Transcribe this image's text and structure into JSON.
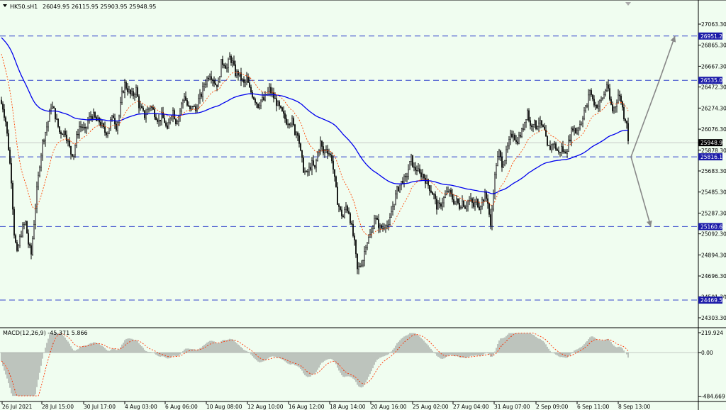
{
  "chart_data": {
    "type": "candlestick",
    "symbol_header": "HK50.sH1",
    "ohlc_header": "26049.95 26115.95 25903.95 25948.95",
    "current_price": 25948.95,
    "price_axis": {
      "range": [
        24200,
        27200
      ],
      "ticks": [
        "27063.30",
        "26865.30",
        "26667.30",
        "26472.30",
        "26274.30",
        "26076.30",
        "25878.30",
        "25683.30",
        "25485.30",
        "25287.30",
        "25092.30",
        "24894.30",
        "24696.30",
        "24501.30",
        "24303.30"
      ],
      "tick_values": [
        27063.3,
        26865.3,
        26667.3,
        26472.3,
        26274.3,
        26076.3,
        25878.3,
        25683.3,
        25485.3,
        25287.3,
        25092.3,
        24894.3,
        24696.3,
        24501.3,
        24303.3
      ]
    },
    "levels": [
      {
        "value": 26951.26,
        "label": "26951.26"
      },
      {
        "value": 26535.0,
        "label": "26535.00"
      },
      {
        "value": 25816.19,
        "label": "25816.19"
      },
      {
        "value": 25160.63,
        "label": "25160.63"
      },
      {
        "value": 24469.58,
        "label": "24469.58"
      }
    ],
    "time_axis": {
      "labels": [
        "26 Jul 2021",
        "28 Jul 15:00",
        "30 Jul 17:00",
        "4 Aug 03:00",
        "6 Aug 06:00",
        "10 Aug 08:00",
        "12 Aug 10:00",
        "16 Aug 12:00",
        "18 Aug 14:00",
        "20 Aug 16:00",
        "25 Aug 02:00",
        "27 Aug 04:00",
        "31 Aug 07:00",
        "2 Sep 09:00",
        "6 Sep 11:00",
        "8 Sep 13:00"
      ]
    },
    "price_path": [
      [
        0,
        26350
      ],
      [
        4,
        26280
      ],
      [
        8,
        26150
      ],
      [
        12,
        25900
      ],
      [
        16,
        25600
      ],
      [
        20,
        25100
      ],
      [
        24,
        24900
      ],
      [
        28,
        25050
      ],
      [
        32,
        25150
      ],
      [
        36,
        25200
      ],
      [
        40,
        25000
      ],
      [
        44,
        24900
      ],
      [
        48,
        25200
      ],
      [
        52,
        25500
      ],
      [
        56,
        25750
      ],
      [
        60,
        25950
      ],
      [
        64,
        26050
      ],
      [
        68,
        26150
      ],
      [
        72,
        26300
      ],
      [
        76,
        26250
      ],
      [
        80,
        26150
      ],
      [
        84,
        26050
      ],
      [
        88,
        26050
      ],
      [
        92,
        26050
      ],
      [
        96,
        25950
      ],
      [
        100,
        25850
      ],
      [
        104,
        25850
      ],
      [
        108,
        26000
      ],
      [
        112,
        26100
      ],
      [
        116,
        26100
      ],
      [
        120,
        26050
      ],
      [
        124,
        26150
      ],
      [
        128,
        26200
      ],
      [
        132,
        26200
      ],
      [
        136,
        26150
      ],
      [
        140,
        26150
      ],
      [
        144,
        26100
      ],
      [
        148,
        26050
      ],
      [
        152,
        26050
      ],
      [
        156,
        26150
      ],
      [
        160,
        26200
      ],
      [
        164,
        26100
      ],
      [
        168,
        26200
      ],
      [
        172,
        26400
      ],
      [
        176,
        26500
      ],
      [
        180,
        26450
      ],
      [
        184,
        26400
      ],
      [
        188,
        26400
      ],
      [
        192,
        26450
      ],
      [
        196,
        26300
      ],
      [
        200,
        26250
      ],
      [
        204,
        26200
      ],
      [
        208,
        26250
      ],
      [
        212,
        26300
      ],
      [
        216,
        26250
      ],
      [
        220,
        26200
      ],
      [
        224,
        26150
      ],
      [
        228,
        26200
      ],
      [
        232,
        26150
      ],
      [
        236,
        26050
      ],
      [
        240,
        26200
      ],
      [
        244,
        26250
      ],
      [
        248,
        26150
      ],
      [
        252,
        26200
      ],
      [
        256,
        26300
      ],
      [
        260,
        26400
      ],
      [
        264,
        26300
      ],
      [
        268,
        26250
      ],
      [
        272,
        26300
      ],
      [
        276,
        26250
      ],
      [
        280,
        26350
      ],
      [
        284,
        26400
      ],
      [
        288,
        26500
      ],
      [
        292,
        26550
      ],
      [
        296,
        26600
      ],
      [
        300,
        26550
      ],
      [
        304,
        26500
      ],
      [
        308,
        26500
      ],
      [
        312,
        26700
      ],
      [
        316,
        26700
      ],
      [
        320,
        26650
      ],
      [
        324,
        26750
      ],
      [
        328,
        26700
      ],
      [
        332,
        26600
      ],
      [
        336,
        26600
      ],
      [
        340,
        26550
      ],
      [
        344,
        26500
      ],
      [
        348,
        26550
      ],
      [
        352,
        26450
      ],
      [
        356,
        26400
      ],
      [
        360,
        26350
      ],
      [
        364,
        26300
      ],
      [
        368,
        26350
      ],
      [
        372,
        26350
      ],
      [
        376,
        26400
      ],
      [
        380,
        26450
      ],
      [
        384,
        26400
      ],
      [
        388,
        26350
      ],
      [
        392,
        26300
      ],
      [
        396,
        26250
      ],
      [
        400,
        26200
      ],
      [
        404,
        26150
      ],
      [
        408,
        26150
      ],
      [
        412,
        26150
      ],
      [
        416,
        26050
      ],
      [
        420,
        26050
      ],
      [
        424,
        25850
      ],
      [
        428,
        25700
      ],
      [
        432,
        25650
      ],
      [
        436,
        25700
      ],
      [
        440,
        25750
      ],
      [
        444,
        25700
      ],
      [
        448,
        25850
      ],
      [
        452,
        25950
      ],
      [
        456,
        25850
      ],
      [
        460,
        25900
      ],
      [
        464,
        25850
      ],
      [
        468,
        25800
      ],
      [
        472,
        25600
      ],
      [
        476,
        25400
      ],
      [
        480,
        25300
      ],
      [
        484,
        25250
      ],
      [
        488,
        25350
      ],
      [
        492,
        25300
      ],
      [
        496,
        25150
      ],
      [
        500,
        25000
      ],
      [
        504,
        24750
      ],
      [
        508,
        24800
      ],
      [
        512,
        24850
      ],
      [
        516,
        25000
      ],
      [
        520,
        25050
      ],
      [
        524,
        25100
      ],
      [
        528,
        25250
      ],
      [
        532,
        25200
      ],
      [
        536,
        25150
      ],
      [
        540,
        25150
      ],
      [
        544,
        25200
      ],
      [
        548,
        25150
      ],
      [
        552,
        25300
      ],
      [
        556,
        25400
      ],
      [
        560,
        25500
      ],
      [
        564,
        25550
      ],
      [
        568,
        25600
      ],
      [
        572,
        25600
      ],
      [
        576,
        25700
      ],
      [
        580,
        25800
      ],
      [
        584,
        25700
      ],
      [
        588,
        25700
      ],
      [
        592,
        25650
      ],
      [
        596,
        25650
      ],
      [
        600,
        25600
      ],
      [
        604,
        25550
      ],
      [
        608,
        25500
      ],
      [
        612,
        25450
      ],
      [
        616,
        25350
      ],
      [
        620,
        25350
      ],
      [
        624,
        25400
      ],
      [
        628,
        25450
      ],
      [
        632,
        25500
      ],
      [
        636,
        25450
      ],
      [
        640,
        25400
      ],
      [
        644,
        25400
      ],
      [
        648,
        25350
      ],
      [
        652,
        25400
      ],
      [
        656,
        25350
      ],
      [
        660,
        25400
      ],
      [
        664,
        25400
      ],
      [
        668,
        25350
      ],
      [
        672,
        25400
      ],
      [
        676,
        25350
      ],
      [
        680,
        25400
      ],
      [
        684,
        25450
      ],
      [
        688,
        25400
      ],
      [
        692,
        25150
      ],
      [
        696,
        25500
      ],
      [
        700,
        25750
      ],
      [
        704,
        25850
      ],
      [
        708,
        25750
      ],
      [
        712,
        25800
      ],
      [
        716,
        25900
      ],
      [
        720,
        26000
      ],
      [
        724,
        26050
      ],
      [
        728,
        25950
      ],
      [
        732,
        26000
      ],
      [
        736,
        26050
      ],
      [
        740,
        26150
      ],
      [
        744,
        26250
      ],
      [
        748,
        26100
      ],
      [
        752,
        26150
      ],
      [
        756,
        26100
      ],
      [
        760,
        26150
      ],
      [
        764,
        26100
      ],
      [
        768,
        26050
      ],
      [
        772,
        25900
      ],
      [
        776,
        25900
      ],
      [
        780,
        25950
      ],
      [
        784,
        25900
      ],
      [
        788,
        25850
      ],
      [
        792,
        25900
      ],
      [
        796,
        25850
      ],
      [
        800,
        25900
      ],
      [
        804,
        26000
      ],
      [
        808,
        26100
      ],
      [
        812,
        26050
      ],
      [
        816,
        26100
      ],
      [
        820,
        26150
      ],
      [
        824,
        26250
      ],
      [
        828,
        26300
      ],
      [
        832,
        26450
      ],
      [
        836,
        26350
      ],
      [
        840,
        26300
      ],
      [
        844,
        26300
      ],
      [
        848,
        26350
      ],
      [
        852,
        26400
      ],
      [
        856,
        26500
      ],
      [
        860,
        26350
      ],
      [
        864,
        26250
      ],
      [
        868,
        26300
      ],
      [
        872,
        26400
      ],
      [
        876,
        26350
      ],
      [
        880,
        26200
      ],
      [
        884,
        26150
      ],
      [
        886,
        25949
      ]
    ],
    "projections": [
      {
        "from": [
          890,
          25816
        ],
        "to": [
          952,
          26951
        ],
        "via": [
          930,
          26535
        ]
      },
      {
        "from": [
          890,
          25816
        ],
        "to": [
          918,
          25160
        ]
      }
    ],
    "moving_averages": [
      {
        "color": "#0000ee",
        "kind": "slow"
      },
      {
        "color": "#ff4500",
        "kind": "fast",
        "style": "dotted"
      }
    ],
    "macd": {
      "header": "MACD(12,26,9) -45.371 5.866",
      "axis_ticks": [
        "219.924",
        "0.00",
        "-484.669"
      ],
      "axis_values": [
        219.924,
        0,
        -484.669
      ]
    },
    "colors": {
      "background": "#f0fdf0",
      "grid_level": "#3344cc",
      "level_box": "#1a1aa8",
      "price_box": "#000000"
    }
  }
}
